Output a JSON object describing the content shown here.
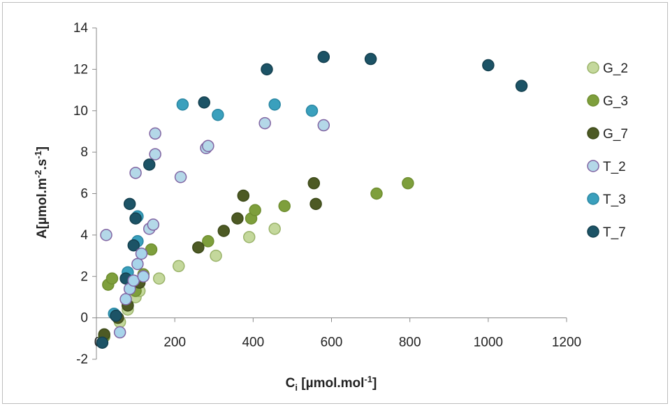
{
  "chart_data": {
    "type": "scatter",
    "title": "",
    "xlabel": {
      "main": "C",
      "sub": "i",
      "rest": " [µmol.mol",
      "sup": "-1",
      "end": "]"
    },
    "ylabel": {
      "pre": "A[µmol.m",
      "sup1": "-2",
      "mid": ".s",
      "sup2": "-1",
      "end": "]"
    },
    "xlim": [
      0,
      1200
    ],
    "ylim": [
      -2,
      14
    ],
    "x_ticks": [
      "0",
      "200",
      "400",
      "600",
      "800",
      "1000",
      "1200"
    ],
    "y_ticks": [
      "-2",
      "0",
      "2",
      "4",
      "6",
      "8",
      "10",
      "12",
      "14"
    ],
    "grid": false,
    "legend_position": "right",
    "series": [
      {
        "name": "G_2",
        "fill": "#c4d89c",
        "stroke": "#9ab369",
        "points": [
          [
            60,
            -0.2
          ],
          [
            80,
            0.4
          ],
          [
            100,
            1.0
          ],
          [
            110,
            1.3
          ],
          [
            160,
            1.9
          ],
          [
            210,
            2.5
          ],
          [
            305,
            3.0
          ],
          [
            390,
            3.9
          ],
          [
            455,
            4.3
          ]
        ]
      },
      {
        "name": "G_3",
        "fill": "#7e9f3c",
        "stroke": "#6f8e30",
        "points": [
          [
            20,
            -0.9
          ],
          [
            30,
            1.6
          ],
          [
            40,
            1.9
          ],
          [
            80,
            0.6
          ],
          [
            100,
            1.3
          ],
          [
            120,
            2.1
          ],
          [
            140,
            3.3
          ],
          [
            285,
            3.7
          ],
          [
            395,
            4.8
          ],
          [
            405,
            5.2
          ],
          [
            480,
            5.4
          ],
          [
            715,
            6.0
          ],
          [
            795,
            6.5
          ]
        ]
      },
      {
        "name": "G_7",
        "fill": "#4d5a24",
        "stroke": "#3d4a19",
        "points": [
          [
            20,
            -0.8
          ],
          [
            55,
            0.0
          ],
          [
            80,
            0.6
          ],
          [
            110,
            1.7
          ],
          [
            260,
            3.4
          ],
          [
            325,
            4.2
          ],
          [
            360,
            4.8
          ],
          [
            375,
            5.9
          ],
          [
            555,
            6.5
          ],
          [
            560,
            5.5
          ]
        ]
      },
      {
        "name": "T_2",
        "fill": "#b4d8e8",
        "stroke": "#8064a2",
        "points": [
          [
            25,
            4.0
          ],
          [
            100,
            7.0
          ],
          [
            135,
            4.3
          ],
          [
            145,
            4.5
          ],
          [
            150,
            7.9
          ],
          [
            150,
            8.9
          ],
          [
            215,
            6.8
          ],
          [
            280,
            8.2
          ],
          [
            285,
            8.3
          ],
          [
            430,
            9.4
          ],
          [
            580,
            9.3
          ]
        ]
      },
      {
        "name": "T_3",
        "fill": "#3aa0bd",
        "stroke": "#2a87a3",
        "points": [
          [
            45,
            0.2
          ],
          [
            80,
            2.2
          ],
          [
            105,
            3.7
          ],
          [
            105,
            4.9
          ],
          [
            220,
            10.3
          ],
          [
            310,
            9.8
          ],
          [
            455,
            10.3
          ],
          [
            550,
            10.0
          ]
        ]
      },
      {
        "name": "T_7",
        "fill": "#1c5366",
        "stroke": "#14404f",
        "points": [
          [
            15,
            -1.2
          ],
          [
            50,
            0.1
          ],
          [
            75,
            1.9
          ],
          [
            85,
            5.5
          ],
          [
            95,
            3.5
          ],
          [
            100,
            4.8
          ],
          [
            135,
            7.4
          ],
          [
            275,
            10.4
          ],
          [
            435,
            12.0
          ],
          [
            580,
            12.6
          ],
          [
            700,
            12.5
          ],
          [
            1000,
            12.2
          ],
          [
            1085,
            11.2
          ]
        ]
      }
    ],
    "extra_light_blue_points": [
      [
        60,
        -0.7
      ],
      [
        75,
        0.9
      ],
      [
        85,
        1.4
      ],
      [
        95,
        1.8
      ],
      [
        105,
        2.6
      ],
      [
        115,
        3.1
      ],
      [
        120,
        2.0
      ]
    ]
  }
}
